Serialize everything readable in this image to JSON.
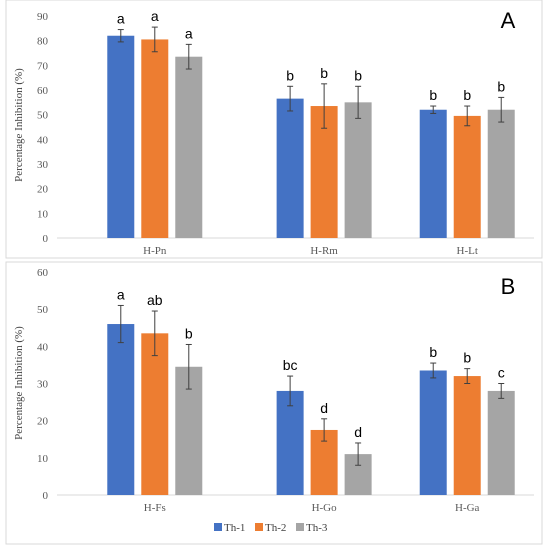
{
  "legend": [
    "Th-1",
    "Th-2",
    "Th-3"
  ],
  "colors": [
    "#4472C4",
    "#ED7D31",
    "#A5A5A5"
  ],
  "chart_data": [
    {
      "type": "bar",
      "panel_label": "A",
      "ylabel": "Percentage Inhibition (%)",
      "ylim": [
        0,
        90
      ],
      "yticks": [
        0,
        10,
        20,
        30,
        40,
        50,
        60,
        70,
        80,
        90
      ],
      "categories": [
        "H-Pn",
        "H-Rm",
        "H-Lt"
      ],
      "grid": false,
      "series": [
        {
          "name": "Th-1",
          "values": [
            82,
            56.5,
            52
          ],
          "errors": [
            2.5,
            5,
            1.5
          ],
          "letters": [
            "a",
            "b",
            "b"
          ]
        },
        {
          "name": "Th-2",
          "values": [
            80.5,
            53.5,
            49.5
          ],
          "errors": [
            5,
            9,
            4
          ],
          "letters": [
            "a",
            "b",
            "b"
          ]
        },
        {
          "name": "Th-3",
          "values": [
            73.5,
            55,
            52
          ],
          "errors": [
            5,
            6.5,
            5
          ],
          "letters": [
            "a",
            "b",
            "b"
          ]
        }
      ]
    },
    {
      "type": "bar",
      "panel_label": "B",
      "ylabel": "Percentage Inhibition (%)",
      "ylim": [
        0,
        60
      ],
      "yticks": [
        0,
        10,
        20,
        30,
        40,
        50,
        60
      ],
      "categories": [
        "H-Fs",
        "H-Go",
        "H-Ga"
      ],
      "grid": false,
      "series": [
        {
          "name": "Th-1",
          "values": [
            46,
            28,
            33.5
          ],
          "errors": [
            5,
            4,
            2
          ],
          "letters": [
            "a",
            "bc",
            "b"
          ]
        },
        {
          "name": "Th-2",
          "values": [
            43.5,
            17.5,
            32
          ],
          "errors": [
            6,
            3,
            2
          ],
          "letters": [
            "ab",
            "d",
            "b"
          ]
        },
        {
          "name": "Th-3",
          "values": [
            34.5,
            11,
            28
          ],
          "errors": [
            6,
            3,
            2
          ],
          "letters": [
            "b",
            "d",
            "c"
          ]
        }
      ]
    }
  ]
}
